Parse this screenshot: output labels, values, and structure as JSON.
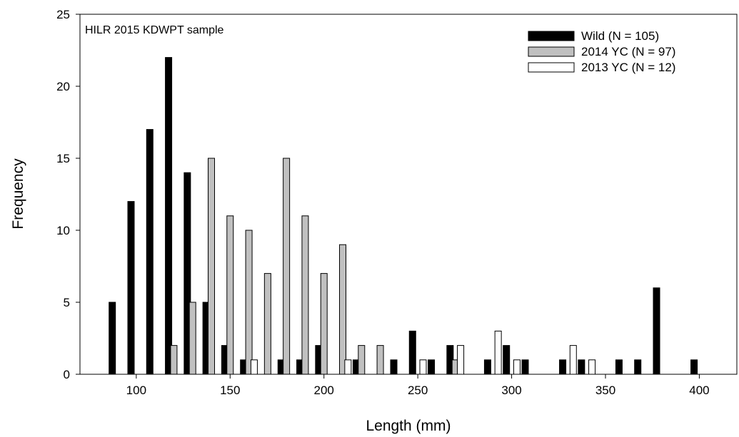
{
  "chart_data": {
    "type": "bar",
    "annotation": "HILR 2015 KDWPT sample",
    "xlabel": "Length (mm)",
    "ylabel": "Frequency",
    "xlim": [
      70,
      420
    ],
    "ylim": [
      0,
      25
    ],
    "xticks": [
      100,
      150,
      200,
      250,
      300,
      350,
      400
    ],
    "yticks": [
      0,
      5,
      10,
      15,
      20,
      25
    ],
    "bin_width": 10,
    "legend_position": "top-right",
    "grid": false,
    "categories": [
      90,
      100,
      110,
      120,
      130,
      140,
      150,
      160,
      170,
      180,
      190,
      200,
      210,
      220,
      230,
      240,
      250,
      260,
      270,
      280,
      290,
      300,
      310,
      320,
      330,
      340,
      350,
      360,
      370,
      380,
      390,
      400,
      410
    ],
    "series": [
      {
        "name": "Wild (N = 105)",
        "color": "#000000",
        "values": [
          5,
          12,
          17,
          22,
          14,
          5,
          2,
          1,
          0,
          1,
          1,
          2,
          0,
          1,
          0,
          1,
          3,
          1,
          2,
          0,
          1,
          2,
          1,
          0,
          1,
          1,
          0,
          1,
          1,
          6,
          0,
          1,
          0
        ]
      },
      {
        "name": "2014 YC (N = 97)",
        "color": "#c0c0c0",
        "values": [
          0,
          0,
          0,
          2,
          5,
          15,
          11,
          10,
          7,
          15,
          11,
          7,
          9,
          2,
          2,
          0,
          0,
          0,
          1,
          0,
          0,
          0,
          0,
          0,
          0,
          0,
          0,
          0,
          0,
          0,
          0,
          0,
          0
        ]
      },
      {
        "name": "2013 YC (N = 12)",
        "color": "#ffffff",
        "values": [
          0,
          0,
          0,
          0,
          0,
          0,
          0,
          1,
          0,
          0,
          0,
          0,
          1,
          0,
          0,
          0,
          1,
          0,
          2,
          0,
          3,
          1,
          0,
          0,
          2,
          1,
          0,
          0,
          0,
          0,
          0,
          0,
          0
        ]
      }
    ]
  }
}
